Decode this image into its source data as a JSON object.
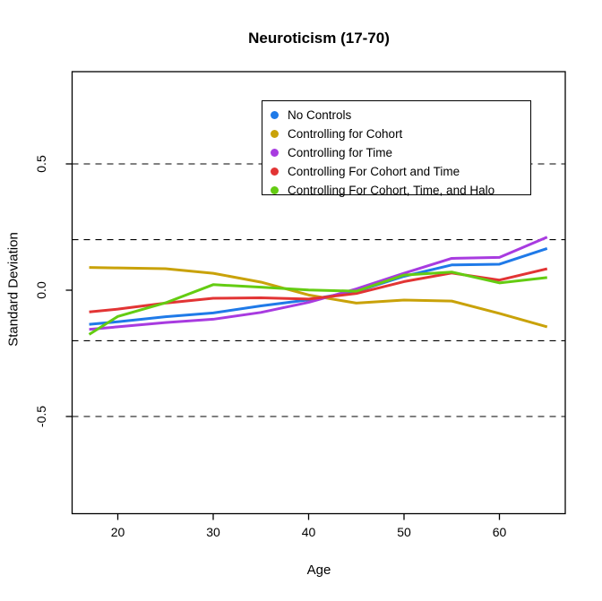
{
  "title": "Neuroticism (17-70)",
  "xlabel": "Age",
  "ylabel": "Standard Deviation",
  "x_ticks": [
    "20",
    "30",
    "40",
    "50",
    "60"
  ],
  "y_ticks": [
    "0.5",
    "0.0",
    "-0.5"
  ],
  "legend": {
    "items": [
      {
        "label": "No Controls",
        "color": "#1F7AE8"
      },
      {
        "label": "Controlling for Cohort",
        "color": "#C9A209"
      },
      {
        "label": "Controlling for Time",
        "color": "#A83BE0"
      },
      {
        "label": "Controlling For Cohort and Time",
        "color": "#E23434"
      },
      {
        "label": "Controlling For Cohort, Time, and Halo",
        "color": "#64CC12"
      }
    ]
  },
  "chart_data": {
    "type": "line",
    "title": "Neuroticism (17-70)",
    "xlabel": "Age",
    "ylabel": "Standard Deviation",
    "x": [
      17,
      20,
      25,
      30,
      35,
      40,
      45,
      50,
      55,
      60,
      65
    ],
    "series": [
      {
        "name": "No Controls",
        "color": "#1F7AE8",
        "values": [
          -0.135,
          -0.125,
          -0.105,
          -0.09,
          -0.062,
          -0.038,
          -0.005,
          0.055,
          0.1,
          0.103,
          0.165
        ]
      },
      {
        "name": "Controlling for Cohort",
        "color": "#C9A209",
        "values": [
          0.09,
          0.088,
          0.085,
          0.067,
          0.032,
          -0.019,
          -0.051,
          -0.039,
          -0.043,
          -0.092,
          -0.145
        ]
      },
      {
        "name": "Controlling for Time",
        "color": "#A83BE0",
        "values": [
          -0.155,
          -0.145,
          -0.128,
          -0.115,
          -0.088,
          -0.048,
          0.005,
          0.067,
          0.126,
          0.13,
          0.21
        ]
      },
      {
        "name": "Controlling For Cohort and Time",
        "color": "#E23434",
        "values": [
          -0.086,
          -0.075,
          -0.051,
          -0.032,
          -0.03,
          -0.035,
          -0.013,
          0.034,
          0.068,
          0.04,
          0.085
        ]
      },
      {
        "name": "Controlling For Cohort, Time, and Halo",
        "color": "#64CC12",
        "values": [
          -0.175,
          -0.104,
          -0.05,
          0.022,
          0.012,
          0.001,
          -0.004,
          0.06,
          0.072,
          0.029,
          0.05
        ]
      }
    ],
    "x_tick_values": [
      20,
      30,
      40,
      50,
      60
    ],
    "y_tick_values": [
      0.5,
      0.0,
      -0.5
    ],
    "gridlines_y": [
      0.5,
      0.2,
      -0.2,
      -0.5
    ],
    "grid_style": "dashed",
    "legend_position": "top-center-inside",
    "xlim": [
      15.1,
      66.9
    ],
    "ylim": [
      -0.88,
      0.86
    ]
  }
}
